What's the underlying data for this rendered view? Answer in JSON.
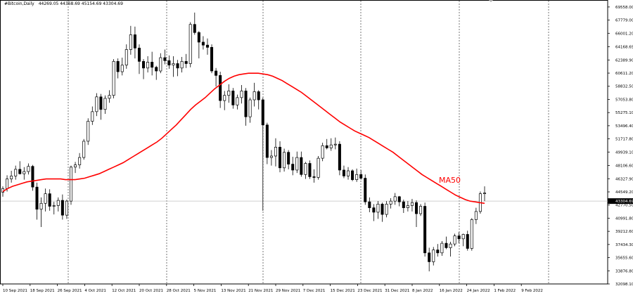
{
  "header": {
    "symbol": "#Bitcoin,Daily",
    "ohlc": "44269.05 44368.69 45154.69 43304.69"
  },
  "indicator_label": "MA50",
  "current_price_label": "43304.69",
  "chart_data": {
    "type": "candlestick",
    "x_ticks": [
      "10 Sep 2021",
      "18 Sep 2021",
      "26 Sep 2021",
      "4 Oct 2021",
      "12 Oct 2021",
      "20 Oct 2021",
      "28 Oct 2021",
      "5 Nov 2021",
      "13 Nov 2021",
      "21 Nov 2021",
      "29 Nov 2021",
      "7 Dec 2021",
      "15 Dec 2021",
      "23 Dec 2021",
      "31 Dec 2021",
      "8 Jan 2022",
      "16 Jan 2022",
      "24 Jan 2022",
      "1 Feb 2022",
      "9 Feb 2022"
    ],
    "y_ticks": [
      "69558.00",
      "67779.00",
      "66001.20",
      "64168.69",
      "62389.90",
      "60611.20",
      "58832.50",
      "57053.80",
      "55275.10",
      "53496.40",
      "51717.80",
      "49939.10",
      "48106.60",
      "46327.90",
      "44549.20",
      "42770.50",
      "40991.80",
      "39212.60",
      "37434.30",
      "35655.60",
      "33876.80",
      "32098.10"
    ],
    "ylim": [
      32098.1,
      70500
    ],
    "current_price": 43304.69,
    "series": [
      {
        "name": "MA50",
        "type": "line",
        "color": "#ff0000"
      }
    ],
    "ohlc": [
      [
        44500,
        45300,
        43900,
        45000
      ],
      [
        45000,
        46800,
        44600,
        46300
      ],
      [
        46300,
        47400,
        45800,
        46700
      ],
      [
        46700,
        48100,
        46200,
        47600
      ],
      [
        47600,
        48700,
        46900,
        47000
      ],
      [
        47000,
        47900,
        46200,
        47300
      ],
      [
        47300,
        48400,
        46900,
        48000
      ],
      [
        48000,
        48200,
        44700,
        45200
      ],
      [
        45200,
        45800,
        40800,
        42200
      ],
      [
        42200,
        43800,
        39800,
        43000
      ],
      [
        43000,
        45000,
        41900,
        44300
      ],
      [
        44300,
        44900,
        42000,
        42600
      ],
      [
        42600,
        43200,
        41500,
        42700
      ],
      [
        42700,
        43800,
        41900,
        43400
      ],
      [
        43400,
        44200,
        40800,
        41400
      ],
      [
        41400,
        43500,
        40900,
        43300
      ],
      [
        43300,
        48100,
        42800,
        47900
      ],
      [
        47900,
        48600,
        47100,
        48200
      ],
      [
        48200,
        49800,
        47700,
        49200
      ],
      [
        49200,
        51700,
        48900,
        51400
      ],
      [
        51400,
        54500,
        50900,
        54100
      ],
      [
        54100,
        56100,
        53600,
        55400
      ],
      [
        55400,
        57900,
        54800,
        57400
      ],
      [
        57400,
        57800,
        54300,
        55700
      ],
      [
        55700,
        57600,
        55100,
        57200
      ],
      [
        57200,
        58300,
        56600,
        57600
      ],
      [
        57600,
        62500,
        57200,
        62200
      ],
      [
        62200,
        62600,
        59900,
        60800
      ],
      [
        60800,
        62700,
        60300,
        61700
      ],
      [
        61700,
        64500,
        61200,
        63800
      ],
      [
        63800,
        67000,
        63100,
        65800
      ],
      [
        65800,
        66900,
        62600,
        64000
      ],
      [
        64000,
        64500,
        60500,
        62200
      ],
      [
        62200,
        62500,
        59800,
        61300
      ],
      [
        61300,
        62900,
        60700,
        62100
      ],
      [
        62100,
        63500,
        60300,
        61400
      ],
      [
        61400,
        61600,
        59700,
        60900
      ],
      [
        60900,
        63300,
        60600,
        62700
      ],
      [
        62700,
        63800,
        61800,
        62300
      ],
      [
        62300,
        63000,
        61200,
        61700
      ],
      [
        61700,
        62900,
        60100,
        61900
      ],
      [
        61900,
        62400,
        60200,
        61300
      ],
      [
        61300,
        62800,
        60700,
        62200
      ],
      [
        62200,
        63200,
        61300,
        61900
      ],
      [
        61900,
        67500,
        61400,
        67200
      ],
      [
        67200,
        68800,
        65800,
        66100
      ],
      [
        66100,
        66300,
        62600,
        64800
      ],
      [
        64800,
        65600,
        63800,
        64400
      ],
      [
        64400,
        65300,
        63100,
        64100
      ],
      [
        64100,
        64500,
        60600,
        60900
      ],
      [
        60900,
        61300,
        58800,
        60300
      ],
      [
        60300,
        60800,
        55900,
        56900
      ],
      [
        56900,
        58200,
        55600,
        57600
      ],
      [
        57600,
        59100,
        56600,
        58200
      ],
      [
        58200,
        58600,
        55800,
        56300
      ],
      [
        56300,
        57700,
        55700,
        57300
      ],
      [
        57300,
        59000,
        56500,
        58200
      ],
      [
        58200,
        58600,
        53500,
        54700
      ],
      [
        54700,
        57300,
        53900,
        57000
      ],
      [
        57000,
        59300,
        56100,
        58100
      ],
      [
        58100,
        58300,
        55700,
        57000
      ],
      [
        57000,
        57300,
        42000,
        53600
      ],
      [
        53600,
        53900,
        48300,
        49200
      ],
      [
        49200,
        50200,
        48100,
        49400
      ],
      [
        49400,
        51800,
        48000,
        50600
      ],
      [
        50600,
        51400,
        47200,
        47800
      ],
      [
        47800,
        50400,
        47300,
        49900
      ],
      [
        49900,
        50200,
        47600,
        48300
      ],
      [
        48300,
        49300,
        46800,
        47500
      ],
      [
        47500,
        50000,
        47100,
        49200
      ],
      [
        49200,
        50000,
        46600,
        46900
      ],
      [
        46900,
        48600,
        46300,
        48400
      ],
      [
        48400,
        48800,
        46300,
        46600
      ],
      [
        46600,
        47600,
        45800,
        46500
      ],
      [
        46500,
        49400,
        46200,
        49100
      ],
      [
        49100,
        51200,
        48700,
        50800
      ],
      [
        50800,
        51700,
        50300,
        50500
      ],
      [
        50500,
        51800,
        50100,
        50900
      ],
      [
        50900,
        51900,
        50300,
        51000
      ],
      [
        51000,
        51400,
        46800,
        47500
      ],
      [
        47500,
        48100,
        46400,
        46700
      ],
      [
        46700,
        47900,
        46200,
        47400
      ],
      [
        47400,
        47600,
        46000,
        46200
      ],
      [
        46200,
        47700,
        45900,
        46900
      ],
      [
        46900,
        47500,
        46200,
        46400
      ],
      [
        46400,
        46900,
        42800,
        43200
      ],
      [
        43200,
        43800,
        41800,
        42400
      ],
      [
        42400,
        42900,
        40600,
        41800
      ],
      [
        41800,
        43300,
        40900,
        42900
      ],
      [
        42900,
        43100,
        40500,
        41500
      ],
      [
        41500,
        43300,
        41100,
        42900
      ],
      [
        42900,
        43700,
        42300,
        43300
      ],
      [
        43300,
        44400,
        42800,
        43900
      ],
      [
        43900,
        44000,
        42600,
        43200
      ],
      [
        43200,
        43500,
        41700,
        42400
      ],
      [
        42400,
        43300,
        41900,
        42700
      ],
      [
        42700,
        43600,
        41900,
        43100
      ],
      [
        43100,
        43400,
        39800,
        41600
      ],
      [
        41600,
        42900,
        41300,
        42600
      ],
      [
        42600,
        43100,
        35800,
        36300
      ],
      [
        36300,
        37000,
        33800,
        35100
      ],
      [
        35100,
        37100,
        34600,
        36700
      ],
      [
        36700,
        37500,
        35800,
        36300
      ],
      [
        36300,
        37900,
        35900,
        37600
      ],
      [
        37600,
        38500,
        36800,
        37000
      ],
      [
        37000,
        37800,
        35800,
        37500
      ],
      [
        37500,
        38900,
        37200,
        38600
      ],
      [
        38600,
        39100,
        37600,
        38200
      ],
      [
        38200,
        38900,
        37200,
        38800
      ],
      [
        38800,
        39300,
        36600,
        36900
      ],
      [
        36900,
        41000,
        36600,
        40800
      ],
      [
        40800,
        42400,
        40200,
        41900
      ],
      [
        41900,
        44600,
        41600,
        44300
      ],
      [
        44300,
        45300,
        43300,
        44400
      ]
    ],
    "ma50": [
      44600,
      45000,
      45300,
      45500,
      45700,
      45900,
      46000,
      46100,
      46200,
      46300,
      46300,
      46300,
      46300,
      46200,
      46200,
      46200,
      46300,
      46400,
      46600,
      46800,
      47000,
      47300,
      47600,
      47900,
      48200,
      48500,
      48900,
      49300,
      49700,
      50100,
      50500,
      50900,
      51300,
      51800,
      52400,
      53000,
      53600,
      54300,
      55000,
      55700,
      56300,
      56800,
      57300,
      57900,
      58500,
      59000,
      59500,
      59900,
      60200,
      60400,
      60500,
      60600,
      60600,
      60600,
      60500,
      60400,
      60200,
      59900,
      59600,
      59200,
      58800,
      58400,
      58000,
      57500,
      57000,
      56500,
      56000,
      55500,
      55000,
      54500,
      54000,
      53600,
      53200,
      52800,
      52500,
      52200,
      51900,
      51500,
      51100,
      50700,
      50300,
      49900,
      49400,
      48900,
      48400,
      47900,
      47400,
      46900,
      46500,
      46100,
      45700,
      45300,
      44900,
      44500,
      44100,
      43800,
      43500,
      43300,
      43200,
      43100,
      43000
    ]
  }
}
